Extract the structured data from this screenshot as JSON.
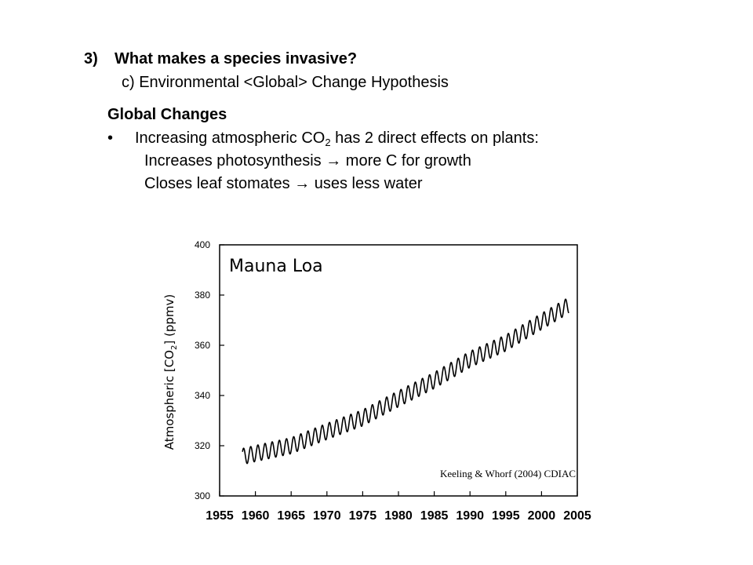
{
  "slide": {
    "heading_number": "3)",
    "heading_text": "What makes a species invasive?",
    "subheading": "c) Environmental <Global> Change Hypothesis",
    "section_title": "Global Changes",
    "bullet_symbol": "•",
    "bullet_text_pre": "Increasing atmospheric CO",
    "bullet_text_sub": "2",
    "bullet_text_post": " has 2 direct effects on plants:",
    "effect_1": "Increases photosynthesis → more C for growth",
    "effect_2": "Closes leaf stomates → uses less water"
  },
  "chart_data": {
    "type": "line",
    "title": "Mauna Loa",
    "ylabel_pre": "Atmospheric [CO",
    "ylabel_sub": "2",
    "ylabel_post": "] (ppmv)",
    "xlabel": "",
    "source_note": "Keeling & Whorf (2004) CDIAC",
    "xlim": [
      1955,
      2005
    ],
    "ylim": [
      300,
      400
    ],
    "x_ticks": [
      1955,
      1960,
      1965,
      1970,
      1975,
      1980,
      1985,
      1990,
      1995,
      2000,
      2005
    ],
    "y_ticks": [
      300,
      320,
      340,
      360,
      380,
      400
    ],
    "grid": false,
    "series": [
      {
        "x": [
          1958.2,
          1960,
          1965,
          1970,
          1975,
          1980,
          1985,
          1990,
          1995,
          2000,
          2003.8
        ],
        "values": [
          315.7,
          316.9,
          320.0,
          325.7,
          331.1,
          338.7,
          346.0,
          354.4,
          360.9,
          369.5,
          375.9
        ],
        "seasonal_amplitude": 3.2
      }
    ],
    "line_color": "#000000"
  }
}
